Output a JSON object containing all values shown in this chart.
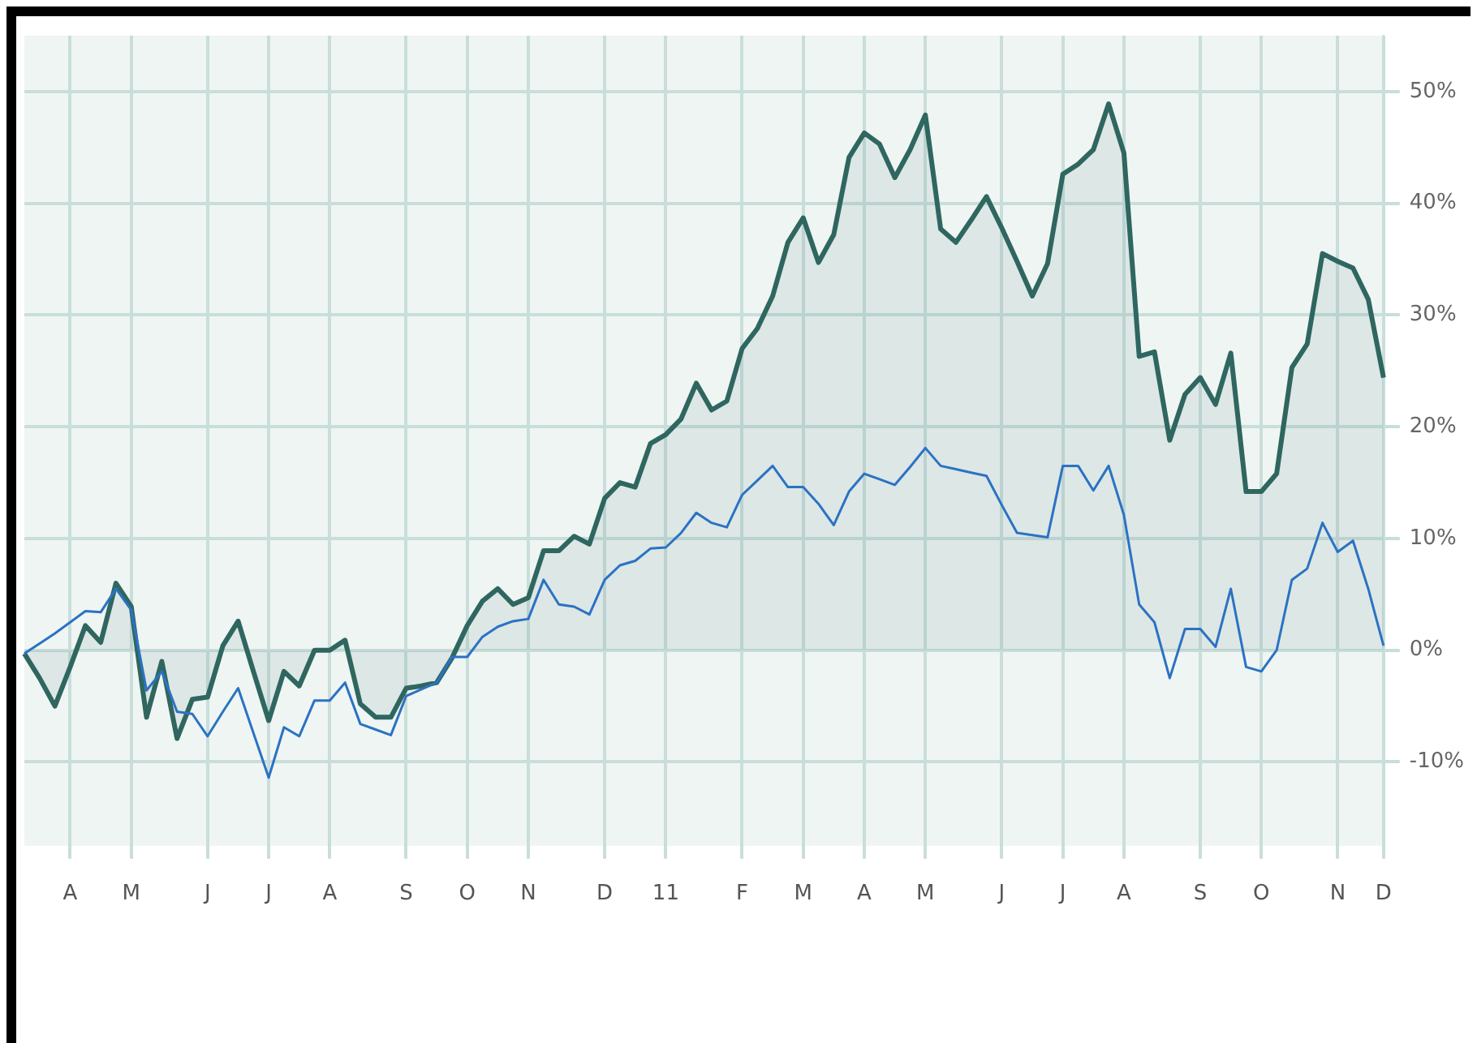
{
  "chart_data": {
    "type": "line",
    "ylim": [
      -17.5,
      55
    ],
    "categories": [
      null,
      null,
      null,
      "A",
      null,
      null,
      null,
      "M",
      null,
      null,
      null,
      null,
      "J",
      null,
      null,
      null,
      "J",
      null,
      null,
      null,
      "A",
      null,
      null,
      null,
      null,
      "S",
      null,
      null,
      null,
      "O",
      null,
      null,
      null,
      "N",
      null,
      null,
      null,
      null,
      "D",
      null,
      null,
      null,
      "11",
      null,
      null,
      null,
      null,
      "F",
      null,
      null,
      null,
      "M",
      null,
      null,
      null,
      "A",
      null,
      null,
      null,
      "M",
      null,
      null,
      null,
      null,
      "J",
      null,
      null,
      null,
      "J",
      null,
      null,
      null,
      "A",
      null,
      null,
      null,
      null,
      "S",
      null,
      null,
      null,
      "O",
      null,
      null,
      null,
      null,
      "N",
      null,
      null,
      "D"
    ],
    "yticks": [
      {
        "value": -10,
        "label": "-10%"
      },
      {
        "value": 0,
        "label": "0%"
      },
      {
        "value": 10,
        "label": "10%"
      },
      {
        "value": 20,
        "label": "20%"
      },
      {
        "value": 30,
        "label": "30%"
      },
      {
        "value": 40,
        "label": "40%"
      },
      {
        "value": 50,
        "label": "50%"
      }
    ],
    "grid": true,
    "marker": "none",
    "line_style": "solid",
    "series": [
      {
        "type": "area",
        "color": "#2f6660",
        "values": [
          -0.3,
          -2.5,
          -5.0,
          -1.5,
          2.2,
          0.7,
          6.0,
          3.9,
          -6.0,
          -1.0,
          -7.9,
          -4.4,
          -4.2,
          0.4,
          2.6,
          -1.9,
          -6.3,
          -1.9,
          -3.2,
          0,
          0,
          0.9,
          -4.8,
          -6.0,
          -6.0,
          -3.4,
          -3.2,
          -2.9,
          -0.7,
          2.2,
          4.4,
          5.5,
          4.1,
          4.7,
          8.9,
          8.9,
          10.2,
          9.5,
          13.6,
          15.0,
          14.6,
          18.5,
          19.3,
          20.7,
          23.9,
          21.5,
          22.3,
          27.0,
          28.8,
          31.7,
          36.5,
          38.7,
          34.7,
          37.2,
          44.1,
          46.3,
          45.3,
          42.3,
          44.8,
          47.9,
          37.7,
          36.5,
          38.5,
          40.6,
          37.8,
          34.8,
          31.7,
          34.6,
          42.6,
          43.5,
          44.8,
          48.9,
          44.5,
          26.3,
          26.7,
          18.8,
          22.9,
          24.4,
          22.0,
          26.6,
          14.2,
          14.2,
          15.8,
          25.3,
          27.4,
          35.5,
          34.8,
          34.2,
          31.4,
          24.4
        ]
      },
      {
        "type": "line",
        "color": "#2b72c4",
        "values": [
          -0.3,
          0.6,
          1.5,
          2.5,
          3.5,
          3.4,
          5.5,
          3.6,
          -3.6,
          -1.9,
          -5.5,
          -5.7,
          -7.7,
          -5.5,
          -3.4,
          -7.4,
          -11.4,
          -6.9,
          -7.7,
          -4.5,
          -4.5,
          -2.9,
          -6.6,
          -7.1,
          -7.6,
          -4.1,
          -3.5,
          -2.9,
          -0.6,
          -0.6,
          1.2,
          2.1,
          2.6,
          2.8,
          6.3,
          4.1,
          3.9,
          3.2,
          6.3,
          7.6,
          8.0,
          9.1,
          9.2,
          10.5,
          12.3,
          11.4,
          11.0,
          13.9,
          15.2,
          16.5,
          14.6,
          14.6,
          13.1,
          11.2,
          14.2,
          15.8,
          15.3,
          14.8,
          16.4,
          18.1,
          16.5,
          16.2,
          15.9,
          15.6,
          13.0,
          10.5,
          10.3,
          10.1,
          16.5,
          16.5,
          14.3,
          16.5,
          12.1,
          4.1,
          2.5,
          -2.5,
          1.9,
          1.9,
          0.3,
          5.5,
          -1.5,
          -1.9,
          0,
          6.3,
          7.3,
          11.4,
          8.8,
          9.8,
          5.5,
          0.4
        ]
      }
    ]
  }
}
